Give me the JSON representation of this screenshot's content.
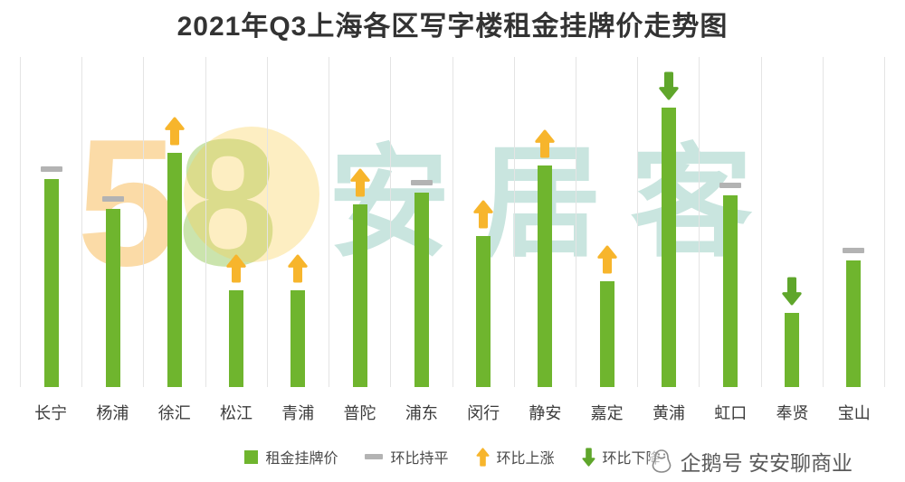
{
  "title": "2021年Q3上海各区写字楼租金挂牌价走势图",
  "colors": {
    "bar": "#6fb52e",
    "up_arrow": "#f7b52c",
    "flat_dash": "#b3b3b3",
    "down_arrow": "#5fa62b",
    "gridline": "#e4e4e4",
    "title_text": "#333333"
  },
  "chart_data": {
    "type": "bar",
    "title": "2021年Q3上海各区写字楼租金挂牌价走势图",
    "categories": [
      "长宁",
      "杨浦",
      "徐汇",
      "松江",
      "青浦",
      "普陀",
      "浦东",
      "闵行",
      "静安",
      "嘉定",
      "黄浦",
      "虹口",
      "奉贤",
      "宝山"
    ],
    "values": [
      230,
      197,
      259,
      107,
      107,
      202,
      215,
      167,
      245,
      117,
      309,
      212,
      82,
      140
    ],
    "change_indicators": [
      "flat",
      "flat",
      "up",
      "up",
      "up",
      "up",
      "flat",
      "up",
      "up",
      "up",
      "down",
      "flat",
      "down",
      "flat"
    ],
    "xlabel": "",
    "ylabel": "",
    "ylim": [
      0,
      365
    ],
    "grid": "vertical-only",
    "legend_position": "bottom-center"
  },
  "legend": {
    "items": [
      {
        "icon": "bar-swatch",
        "label": "租金挂牌价"
      },
      {
        "icon": "flat-dash",
        "label": "环比持平"
      },
      {
        "icon": "up-arrow",
        "label": "环比上涨"
      },
      {
        "icon": "down-arrow",
        "label": "环比下降"
      }
    ]
  },
  "watermark": {
    "number": "58",
    "name": "安居客",
    "number_colors": [
      "rgba(245,166,35,0.40)",
      "rgba(139,195,74,0.45)"
    ],
    "name_color": "rgba(121,190,175,0.40)",
    "circle_color": "rgba(250,205,80,0.35)"
  },
  "footer": {
    "label": "企鹅号 安安聊商业"
  }
}
